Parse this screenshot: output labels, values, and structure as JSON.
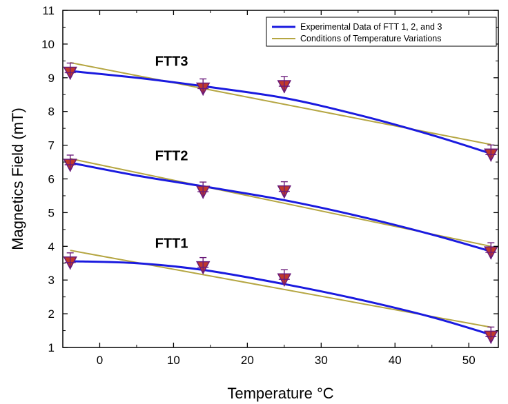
{
  "chart_data": {
    "type": "line",
    "xlabel": "Temperature °C",
    "ylabel": "Magnetics Field (mT)",
    "xlim": [
      -5,
      54
    ],
    "ylim": [
      1,
      11
    ],
    "xticks": [
      0,
      10,
      20,
      30,
      40,
      50
    ],
    "yticks": [
      1,
      2,
      3,
      4,
      5,
      6,
      7,
      8,
      9,
      10,
      11
    ],
    "legend_position": "top-right",
    "colors": {
      "experimental": "#1a1adf",
      "conditions": "#b5a642",
      "marker_fill": "#c0392b",
      "marker_stroke": "#6a1a7a"
    },
    "legend": [
      {
        "label": "Experimental Data of FTT 1, 2, and 3"
      },
      {
        "label": "Conditions of Temperature Variations"
      }
    ],
    "annotations": [
      {
        "text": "FTT3",
        "x": 7.5,
        "y": 9.35
      },
      {
        "text": "FTT2",
        "x": 7.5,
        "y": 6.55
      },
      {
        "text": "FTT1",
        "x": 7.5,
        "y": 3.95
      }
    ],
    "markers": [
      {
        "x": -4,
        "y": 9.15
      },
      {
        "x": 14,
        "y": 8.68
      },
      {
        "x": 25,
        "y": 8.75
      },
      {
        "x": 53,
        "y": 6.72
      },
      {
        "x": -4,
        "y": 6.42
      },
      {
        "x": 14,
        "y": 5.62
      },
      {
        "x": 25,
        "y": 5.63
      },
      {
        "x": 53,
        "y": 3.82
      },
      {
        "x": -4,
        "y": 3.52
      },
      {
        "x": 14,
        "y": 3.38
      },
      {
        "x": 25,
        "y": 3.02
      },
      {
        "x": 53,
        "y": 1.32
      }
    ],
    "experimental_curves": [
      {
        "x": [
          -4,
          5,
          14,
          25,
          35,
          45,
          53
        ],
        "y": [
          9.2,
          9.0,
          8.75,
          8.4,
          7.9,
          7.3,
          6.75
        ]
      },
      {
        "x": [
          -4,
          5,
          14,
          25,
          35,
          45,
          53
        ],
        "y": [
          6.48,
          6.1,
          5.78,
          5.37,
          4.9,
          4.35,
          3.85
        ]
      },
      {
        "x": [
          -4,
          5,
          14,
          25,
          35,
          45,
          53
        ],
        "y": [
          3.56,
          3.5,
          3.3,
          2.88,
          2.43,
          1.9,
          1.38
        ]
      }
    ],
    "condition_lines": [
      {
        "x": [
          -4,
          53
        ],
        "y": [
          9.45,
          7.02
        ]
      },
      {
        "x": [
          -4,
          53
        ],
        "y": [
          6.6,
          4.0
        ]
      },
      {
        "x": [
          -4,
          53
        ],
        "y": [
          3.88,
          1.6
        ]
      }
    ]
  }
}
